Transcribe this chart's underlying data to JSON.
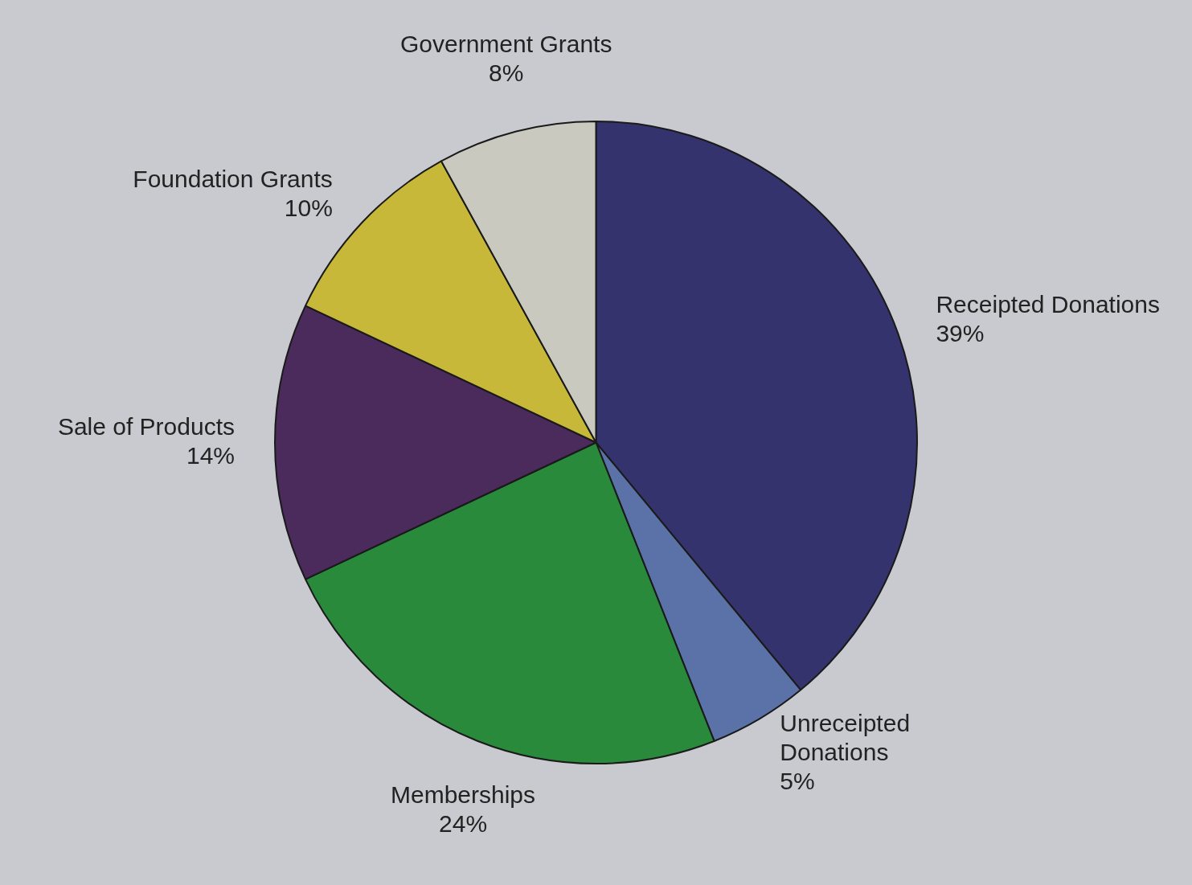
{
  "chart_data": {
    "type": "pie",
    "categories": [
      "Receipted Donations",
      "Unreceipted Donations",
      "Memberships",
      "Sale of Products",
      "Foundation Grants",
      "Government Grants"
    ],
    "values": [
      39,
      5,
      24,
      14,
      10,
      8
    ],
    "value_labels": [
      "39%",
      "5%",
      "24%",
      "14%",
      "10%",
      "8%"
    ],
    "colors": [
      "#35336e",
      "#5a72a8",
      "#2a8a3c",
      "#4b2a5c",
      "#c8b83a",
      "#c9c9c0"
    ],
    "legend": false
  }
}
